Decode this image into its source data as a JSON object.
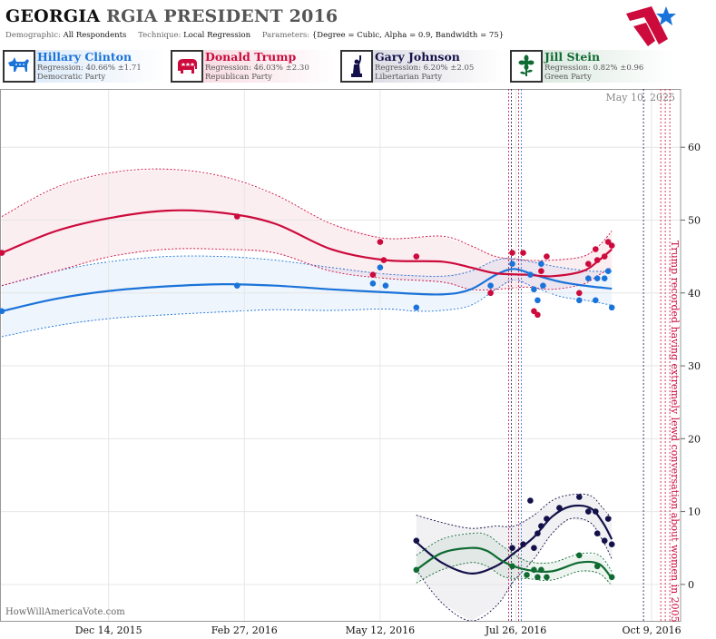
{
  "header": {
    "state": "GEORGIA",
    "title_rest": "RGIA PRESIDENT 2016",
    "demographic_label": "Demographic:",
    "demographic_value": "All Respondents",
    "technique_label": "Technique:",
    "technique_value": "Local Regression",
    "parameters_label": "Parameters:",
    "parameters_value": "{Degree = Cubic, Alpha = 0.9, Bandwidth = 75}"
  },
  "colors": {
    "clinton": "#1a73d9",
    "trump": "#cc0a3c",
    "johnson": "#14114a",
    "stein": "#0f6b32"
  },
  "candidates": [
    {
      "key": "clinton",
      "name": "Hillary Clinton",
      "regression": "Regression: 40.66% ±1.71",
      "party": "Democratic Party",
      "icon": "donkey-icon"
    },
    {
      "key": "trump",
      "name": "Donald Trump",
      "regression": "Regression: 46.03% ±2.30",
      "party": "Republican Party",
      "icon": "elephant-icon"
    },
    {
      "key": "johnson",
      "name": "Gary Johnson",
      "regression": "Regression: 6.20% ±2.05",
      "party": "Libertarian Party",
      "icon": "liberty-statue-icon"
    },
    {
      "key": "stein",
      "name": "Jill Stein",
      "regression": "Regression: 0.82% ±0.96",
      "party": "Green Party",
      "icon": "flower-icon"
    }
  ],
  "watermark": "HowWillAmericaVote.com",
  "chart_data": {
    "type": "scatter",
    "date_label": "May 10, 2025",
    "x_axis": {
      "start": "2015-10-15",
      "end": "2016-10-25",
      "ticks": [
        {
          "date": "2015-12-14",
          "label": "Dec 14, 2015"
        },
        {
          "date": "2016-02-27",
          "label": "Feb 27, 2016"
        },
        {
          "date": "2016-05-12",
          "label": "May 12, 2016"
        },
        {
          "date": "2016-07-26",
          "label": "Jul 26, 2016"
        },
        {
          "date": "2016-10-09",
          "label": "Oct 9, 2016"
        }
      ]
    },
    "y_axis": {
      "min": -5,
      "max": 68,
      "ticks": [
        0,
        10,
        20,
        30,
        40,
        50,
        60
      ]
    },
    "grid": true,
    "event": {
      "date": "2016-10-07",
      "label": "Trump recorded having extremely lewd conversation about women in 2005"
    },
    "series": [
      {
        "key": "clinton",
        "name": "Hillary Clinton",
        "points": [
          [
            "2015-10-16",
            37.5
          ],
          [
            "2016-02-23",
            41
          ],
          [
            "2016-05-08",
            41.3
          ],
          [
            "2016-05-12",
            43.5
          ],
          [
            "2016-05-15",
            41
          ],
          [
            "2016-06-01",
            38
          ],
          [
            "2016-07-12",
            41
          ],
          [
            "2016-07-24",
            44
          ],
          [
            "2016-08-03",
            42.5
          ],
          [
            "2016-08-05",
            40.5
          ],
          [
            "2016-08-07",
            39
          ],
          [
            "2016-08-09",
            44
          ],
          [
            "2016-08-10",
            41
          ],
          [
            "2016-08-30",
            39
          ],
          [
            "2016-09-04",
            42
          ],
          [
            "2016-09-08",
            39
          ],
          [
            "2016-09-09",
            42
          ],
          [
            "2016-09-13",
            42
          ],
          [
            "2016-09-15",
            43
          ],
          [
            "2016-09-17",
            38
          ]
        ],
        "trend": [
          [
            "2015-10-16",
            37.5
          ],
          [
            "2015-11-15",
            39.2
          ],
          [
            "2015-12-15",
            40.3
          ],
          [
            "2016-01-15",
            40.9
          ],
          [
            "2016-02-15",
            41.2
          ],
          [
            "2016-03-15",
            41
          ],
          [
            "2016-04-15",
            40.5
          ],
          [
            "2016-05-15",
            40.1
          ],
          [
            "2016-06-15",
            39.8
          ],
          [
            "2016-07-01",
            40.5
          ],
          [
            "2016-07-15",
            42.5
          ],
          [
            "2016-07-25",
            43.3
          ],
          [
            "2016-08-05",
            42.5
          ],
          [
            "2016-08-20",
            41.5
          ],
          [
            "2016-09-05",
            40.9
          ],
          [
            "2016-09-17",
            40.6
          ]
        ],
        "upper": [
          [
            "2015-10-16",
            41
          ],
          [
            "2015-11-15",
            43
          ],
          [
            "2015-12-15",
            44.3
          ],
          [
            "2016-01-15",
            45
          ],
          [
            "2016-02-15",
            45
          ],
          [
            "2016-03-15",
            44.5
          ],
          [
            "2016-04-15",
            43.5
          ],
          [
            "2016-05-15",
            42.6
          ],
          [
            "2016-06-15",
            42.3
          ],
          [
            "2016-07-01",
            43
          ],
          [
            "2016-07-15",
            44.5
          ],
          [
            "2016-07-25",
            44.7
          ],
          [
            "2016-08-05",
            44.2
          ],
          [
            "2016-08-20",
            43.5
          ],
          [
            "2016-09-05",
            43
          ],
          [
            "2016-09-17",
            43
          ]
        ],
        "lower": [
          [
            "2015-10-16",
            34
          ],
          [
            "2015-11-15",
            35.5
          ],
          [
            "2015-12-15",
            36.5
          ],
          [
            "2016-01-15",
            37
          ],
          [
            "2016-02-15",
            37.4
          ],
          [
            "2016-03-15",
            37.7
          ],
          [
            "2016-04-15",
            37.6
          ],
          [
            "2016-05-15",
            37.8
          ],
          [
            "2016-06-01",
            37.5
          ],
          [
            "2016-06-15",
            37.6
          ],
          [
            "2016-07-01",
            38.3
          ],
          [
            "2016-07-15",
            40.5
          ],
          [
            "2016-07-25",
            41.8
          ],
          [
            "2016-08-05",
            40.8
          ],
          [
            "2016-08-20",
            39.5
          ],
          [
            "2016-09-05",
            38.9
          ],
          [
            "2016-09-17",
            38.3
          ]
        ]
      },
      {
        "key": "trump",
        "name": "Donald Trump",
        "points": [
          [
            "2015-10-16",
            45.5
          ],
          [
            "2016-02-23",
            50.5
          ],
          [
            "2016-05-08",
            42.5
          ],
          [
            "2016-05-12",
            47
          ],
          [
            "2016-05-14",
            44.5
          ],
          [
            "2016-06-01",
            45
          ],
          [
            "2016-07-12",
            40
          ],
          [
            "2016-07-24",
            45.5
          ],
          [
            "2016-07-30",
            45.5
          ],
          [
            "2016-08-05",
            37.5
          ],
          [
            "2016-08-07",
            37
          ],
          [
            "2016-08-09",
            43
          ],
          [
            "2016-08-12",
            45
          ],
          [
            "2016-08-30",
            40
          ],
          [
            "2016-09-04",
            44
          ],
          [
            "2016-09-08",
            46
          ],
          [
            "2016-09-09",
            44.5
          ],
          [
            "2016-09-13",
            45
          ],
          [
            "2016-09-15",
            47
          ],
          [
            "2016-09-17",
            46.5
          ]
        ],
        "trend": [
          [
            "2015-10-16",
            45.5
          ],
          [
            "2015-11-15",
            48.5
          ],
          [
            "2015-12-15",
            50.3
          ],
          [
            "2016-01-15",
            51.3
          ],
          [
            "2016-02-15",
            51
          ],
          [
            "2016-03-15",
            49.5
          ],
          [
            "2016-04-15",
            46
          ],
          [
            "2016-05-15",
            44.5
          ],
          [
            "2016-06-15",
            44.3
          ],
          [
            "2016-07-01",
            43.5
          ],
          [
            "2016-07-15",
            42.7
          ],
          [
            "2016-08-01",
            42.5
          ],
          [
            "2016-08-15",
            42.3
          ],
          [
            "2016-09-01",
            43
          ],
          [
            "2016-09-10",
            44.5
          ],
          [
            "2016-09-17",
            46
          ]
        ],
        "upper": [
          [
            "2015-10-16",
            50.5
          ],
          [
            "2015-11-15",
            54.5
          ],
          [
            "2015-12-15",
            56.5
          ],
          [
            "2016-01-15",
            57
          ],
          [
            "2016-02-15",
            56
          ],
          [
            "2016-03-15",
            53.5
          ],
          [
            "2016-04-15",
            49.5
          ],
          [
            "2016-05-15",
            47.5
          ],
          [
            "2016-06-15",
            47.8
          ],
          [
            "2016-07-01",
            46.5
          ],
          [
            "2016-07-15",
            45
          ],
          [
            "2016-08-01",
            44.5
          ],
          [
            "2016-08-15",
            44.5
          ],
          [
            "2016-09-01",
            45
          ],
          [
            "2016-09-10",
            46.5
          ],
          [
            "2016-09-17",
            48.5
          ]
        ],
        "lower": [
          [
            "2015-10-16",
            41
          ],
          [
            "2015-11-15",
            43
          ],
          [
            "2015-12-15",
            45
          ],
          [
            "2016-01-15",
            46
          ],
          [
            "2016-02-15",
            46
          ],
          [
            "2016-03-15",
            45.5
          ],
          [
            "2016-04-15",
            43
          ],
          [
            "2016-05-15",
            42
          ],
          [
            "2016-06-15",
            41.5
          ],
          [
            "2016-07-01",
            40.5
          ],
          [
            "2016-07-15",
            40.5
          ],
          [
            "2016-08-01",
            40.8
          ],
          [
            "2016-08-15",
            40.5
          ],
          [
            "2016-09-01",
            41.2
          ],
          [
            "2016-09-10",
            42.5
          ],
          [
            "2016-09-17",
            43.5
          ]
        ]
      },
      {
        "key": "johnson",
        "name": "Gary Johnson",
        "points": [
          [
            "2016-06-01",
            6
          ],
          [
            "2016-07-24",
            5
          ],
          [
            "2016-07-30",
            5.5
          ],
          [
            "2016-08-03",
            11.5
          ],
          [
            "2016-08-05",
            5
          ],
          [
            "2016-08-07",
            7
          ],
          [
            "2016-08-09",
            8
          ],
          [
            "2016-08-12",
            9
          ],
          [
            "2016-08-19",
            10.5
          ],
          [
            "2016-08-30",
            12
          ],
          [
            "2016-09-04",
            10
          ],
          [
            "2016-09-08",
            10
          ],
          [
            "2016-09-09",
            7
          ],
          [
            "2016-09-13",
            6
          ],
          [
            "2016-09-15",
            9
          ],
          [
            "2016-09-17",
            5.5
          ]
        ],
        "trend": [
          [
            "2016-06-01",
            5.8
          ],
          [
            "2016-06-15",
            3
          ],
          [
            "2016-07-01",
            1.5
          ],
          [
            "2016-07-15",
            2.5
          ],
          [
            "2016-07-25",
            4.3
          ],
          [
            "2016-08-05",
            6.5
          ],
          [
            "2016-08-15",
            9.3
          ],
          [
            "2016-08-25",
            10.7
          ],
          [
            "2016-09-05",
            10.5
          ],
          [
            "2016-09-12",
            8.5
          ],
          [
            "2016-09-17",
            6.2
          ]
        ],
        "upper": [
          [
            "2016-06-01",
            9.5
          ],
          [
            "2016-06-15",
            8.5
          ],
          [
            "2016-07-01",
            7.7
          ],
          [
            "2016-07-15",
            8
          ],
          [
            "2016-07-25",
            8
          ],
          [
            "2016-08-05",
            9.5
          ],
          [
            "2016-08-15",
            11.5
          ],
          [
            "2016-08-25",
            12.3
          ],
          [
            "2016-09-05",
            12.2
          ],
          [
            "2016-09-12",
            10.5
          ],
          [
            "2016-09-17",
            9
          ]
        ],
        "lower": [
          [
            "2016-06-01",
            2
          ],
          [
            "2016-06-15",
            -2.5
          ],
          [
            "2016-07-01",
            -5
          ],
          [
            "2016-07-15",
            -3
          ],
          [
            "2016-07-25",
            0.5
          ],
          [
            "2016-08-05",
            3.5
          ],
          [
            "2016-08-15",
            7
          ],
          [
            "2016-08-25",
            9
          ],
          [
            "2016-09-05",
            8.5
          ],
          [
            "2016-09-12",
            6
          ],
          [
            "2016-09-17",
            3.5
          ]
        ]
      },
      {
        "key": "stein",
        "name": "Jill Stein",
        "points": [
          [
            "2016-06-01",
            2
          ],
          [
            "2016-07-24",
            2.5
          ],
          [
            "2016-08-01",
            1.3
          ],
          [
            "2016-08-05",
            2
          ],
          [
            "2016-08-07",
            1
          ],
          [
            "2016-08-09",
            2
          ],
          [
            "2016-08-12",
            1
          ],
          [
            "2016-08-30",
            4
          ],
          [
            "2016-09-09",
            2.5
          ],
          [
            "2016-09-17",
            1
          ]
        ],
        "trend": [
          [
            "2016-06-01",
            2
          ],
          [
            "2016-06-15",
            4.3
          ],
          [
            "2016-07-01",
            5
          ],
          [
            "2016-07-10",
            4.6
          ],
          [
            "2016-07-20",
            3
          ],
          [
            "2016-08-01",
            2
          ],
          [
            "2016-08-15",
            1.8
          ],
          [
            "2016-08-30",
            3
          ],
          [
            "2016-09-10",
            2.8
          ],
          [
            "2016-09-17",
            0.8
          ]
        ],
        "upper": [
          [
            "2016-06-01",
            4
          ],
          [
            "2016-06-15",
            6.2
          ],
          [
            "2016-07-01",
            7
          ],
          [
            "2016-07-10",
            6.8
          ],
          [
            "2016-07-20",
            5
          ],
          [
            "2016-08-01",
            3.2
          ],
          [
            "2016-08-15",
            3
          ],
          [
            "2016-08-30",
            4.2
          ],
          [
            "2016-09-10",
            4
          ],
          [
            "2016-09-17",
            1.8
          ]
        ],
        "lower": [
          [
            "2016-06-01",
            0.2
          ],
          [
            "2016-06-15",
            2
          ],
          [
            "2016-07-01",
            3
          ],
          [
            "2016-07-10",
            2.5
          ],
          [
            "2016-07-20",
            1
          ],
          [
            "2016-08-01",
            0.8
          ],
          [
            "2016-08-15",
            0.6
          ],
          [
            "2016-08-30",
            1.8
          ],
          [
            "2016-09-10",
            1.5
          ],
          [
            "2016-09-17",
            -0.2
          ]
        ]
      }
    ]
  }
}
